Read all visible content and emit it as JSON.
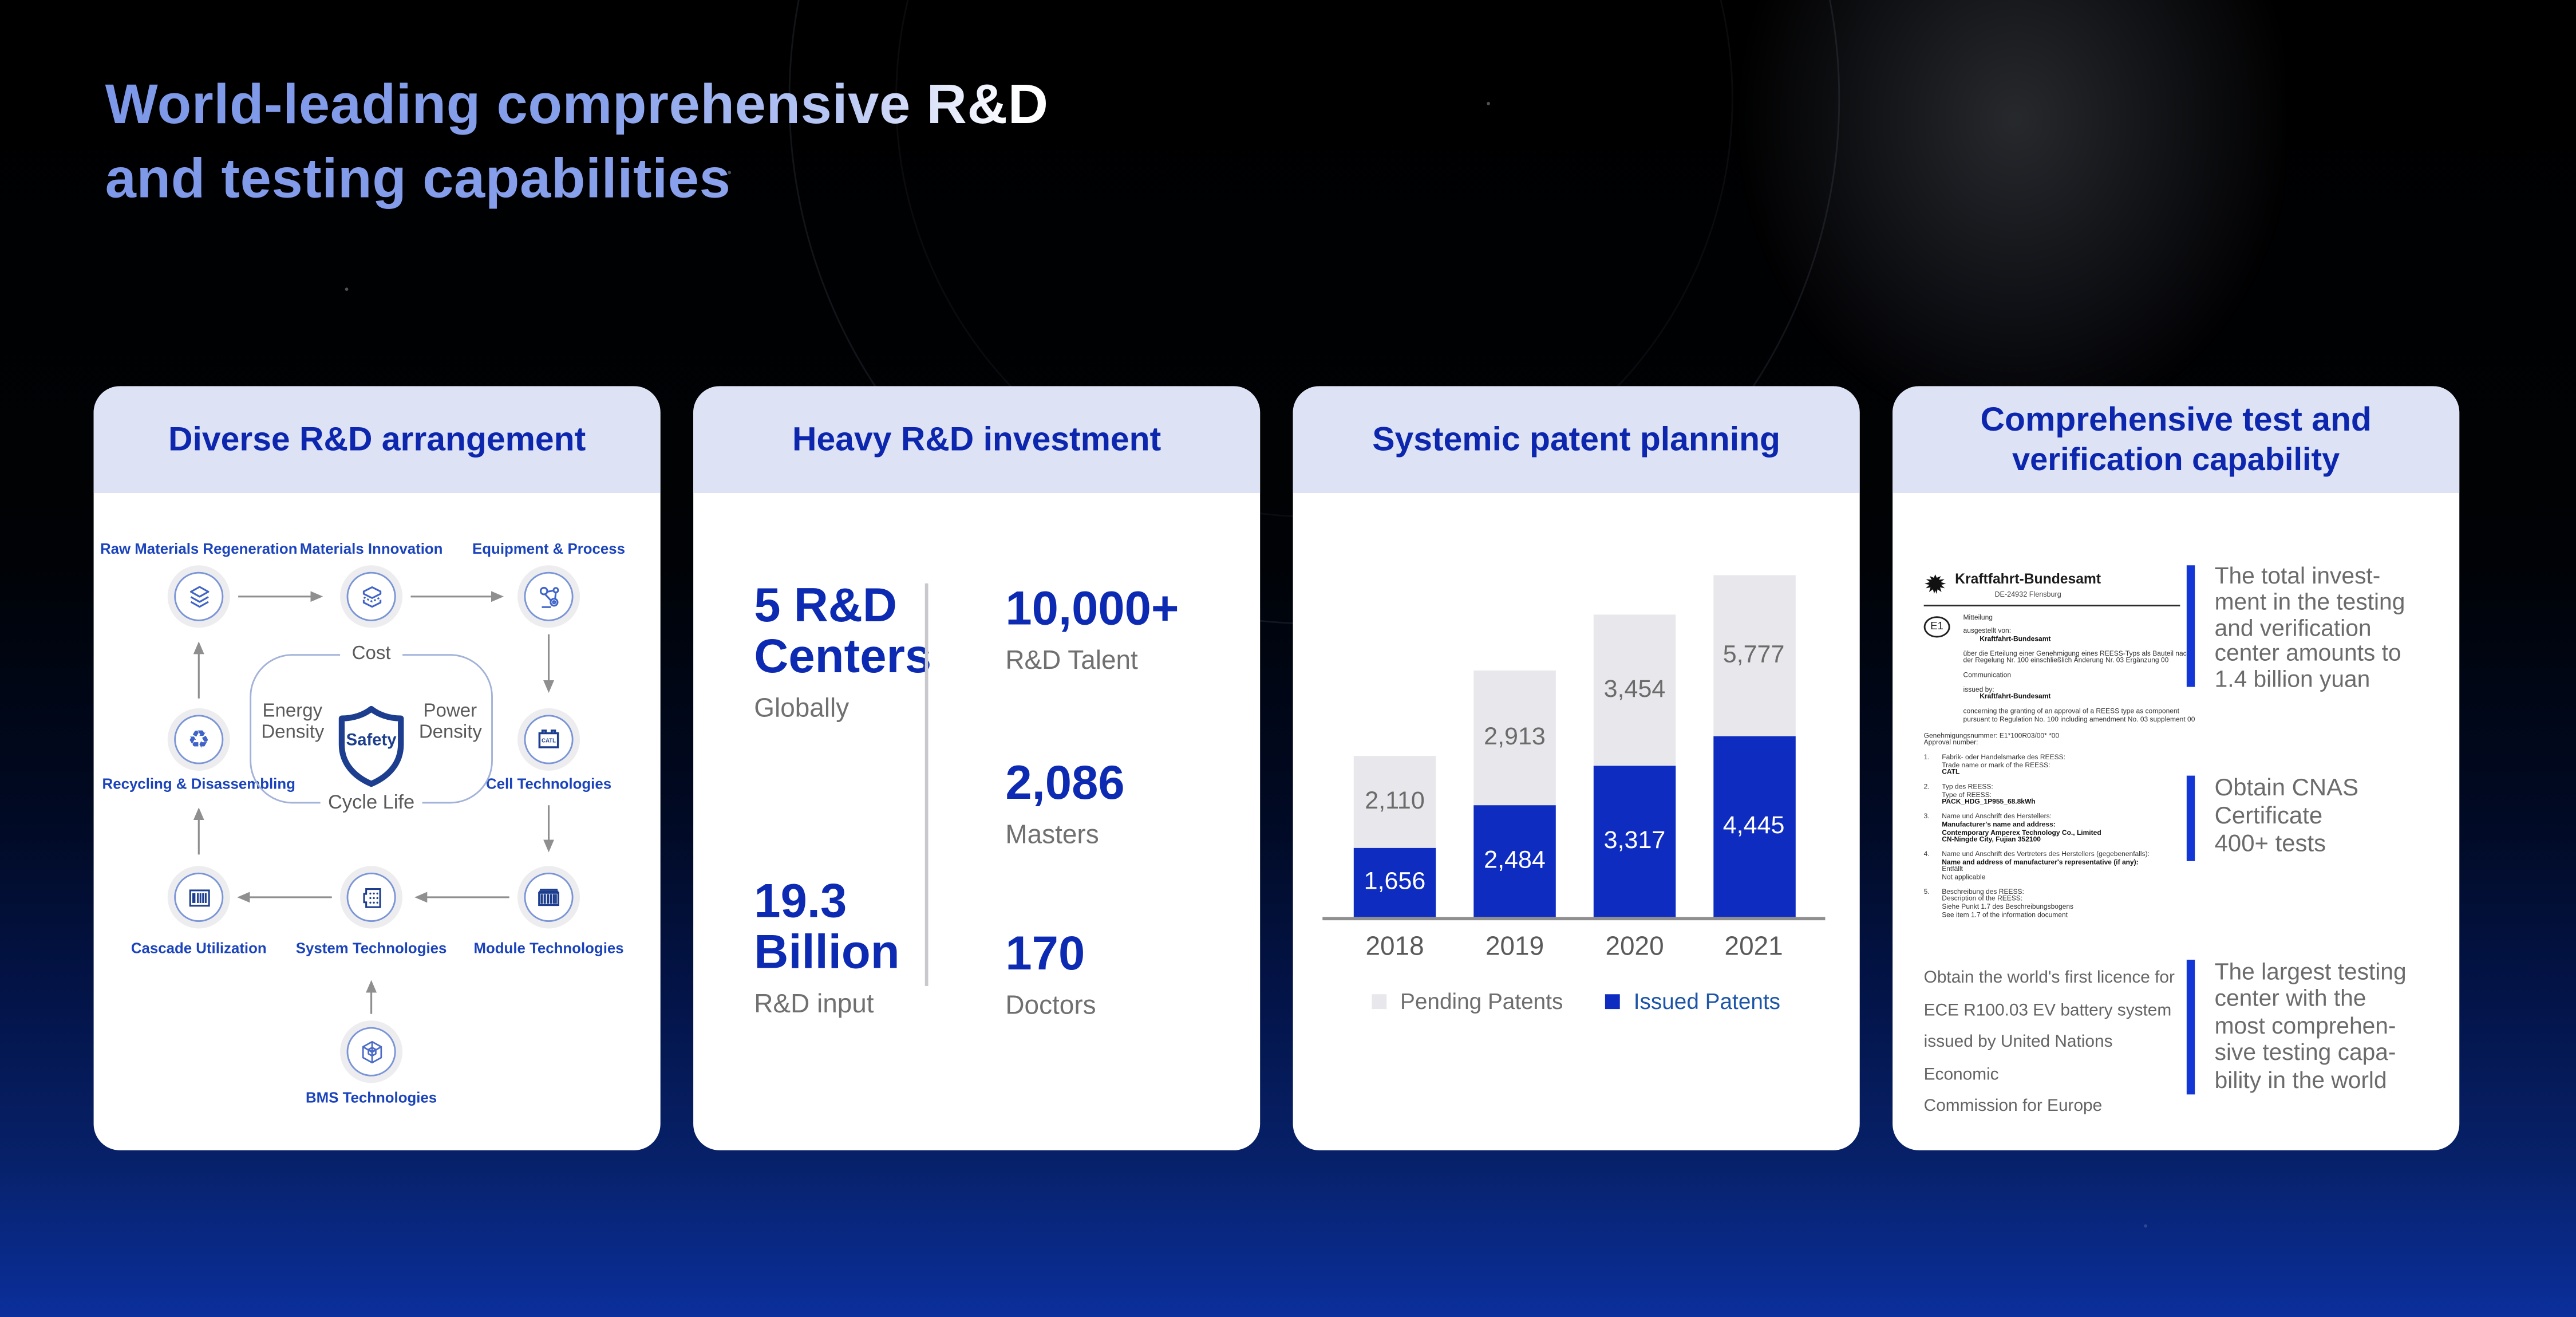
{
  "page": {
    "title_line1": "World-leading comprehensive R&D",
    "title_line2": "and testing capabilities"
  },
  "cards": {
    "arrangement": {
      "header": "Diverse R&D arrangement",
      "nodes": {
        "raw": "Raw Materials Regeneration",
        "materials": "Materials Innovation",
        "equipment": "Equipment & Process",
        "recycling": "Recycling & Disassembling",
        "cell": "Cell Technologies",
        "cascade": "Cascade Utilization",
        "system": "System Technologies",
        "module": "Module Technologies",
        "bms": "BMS Technologies"
      },
      "loop": {
        "top": "Cost",
        "left_line1": "Energy",
        "left_line2": "Density",
        "right_line1": "Power",
        "right_line2": "Density",
        "bottom": "Cycle Life",
        "center": "Safety"
      },
      "battery_text": "CATL"
    },
    "investment": {
      "header": "Heavy R&D investment",
      "left_stats": [
        {
          "value_lines": [
            "5 R&D",
            "Centers"
          ],
          "label": "Globally"
        },
        {
          "value_lines": [
            "19.3",
            "Billion"
          ],
          "label": "R&D input"
        }
      ],
      "right_stats": [
        {
          "value_lines": [
            "10,000+"
          ],
          "label": "R&D Talent"
        },
        {
          "value_lines": [
            "2,086"
          ],
          "label": "Masters"
        },
        {
          "value_lines": [
            "170"
          ],
          "label": "Doctors"
        }
      ]
    },
    "patents": {
      "header": "Systemic patent planning",
      "chart_data": {
        "type": "bar",
        "stacked": true,
        "categories": [
          "2018",
          "2019",
          "2020",
          "2021"
        ],
        "series": [
          {
            "name": "Issued Patents",
            "values": [
              1656,
              2484,
              3317,
              4445
            ],
            "color": "#0f2cc0"
          },
          {
            "name": "Pending Patents",
            "values": [
              2110,
              2913,
              3454,
              5777
            ],
            "color": "#e8e8ec"
          }
        ],
        "title": "",
        "xlabel": "",
        "ylabel": "",
        "grid": false,
        "legend_position": "bottom",
        "value_labels": true
      }
    },
    "testing": {
      "header_line1": "Comprehensive test and",
      "header_line2": "verification capability",
      "certificate": {
        "authority": "Kraftfahrt-Bundesamt",
        "location": "DE-24932 Flensburg",
        "e_mark": "E1",
        "intro_lines": [
          {
            "t": "Mitteilung"
          },
          {
            "t": "ausgestellt von:",
            "g": true
          },
          {
            "t": "Kraftfahrt-Bundesamt",
            "b": true,
            "i": true
          },
          {
            "t": "über die Erteilung einer Genehmigung eines REESS-Typs als Bauteil nach",
            "g": true
          },
          {
            "t": "der Regelung Nr. 100 einschließlich Änderung Nr. 03 Ergänzung 00"
          },
          {
            "t": "Communication",
            "g": true
          },
          {
            "t": "issued by:",
            "g": true
          },
          {
            "t": "Kraftfahrt-Bundesamt",
            "b": true,
            "i": true
          },
          {
            "t": "concerning the granting of an approval of a REESS type as component",
            "g": true
          },
          {
            "t": "pursuant to Regulation No. 100 including amendment No. 03 supplement 00"
          }
        ],
        "approval_lines": [
          {
            "t": "Genehmigungsnummer: E1*100R03/00*        *00"
          },
          {
            "t": "Approval number:"
          }
        ],
        "items": [
          {
            "no": "1.",
            "lines": [
              {
                "t": "Fabrik- oder Handelsmarke des REESS:"
              },
              {
                "t": "Trade name or mark of the REESS:"
              },
              {
                "t": "CATL",
                "b": true
              }
            ]
          },
          {
            "no": "2.",
            "lines": [
              {
                "t": "Typ des REESS:"
              },
              {
                "t": "Type of REESS:"
              },
              {
                "t": "PACK_HDG_1P955_68.8kWh",
                "b": true
              }
            ]
          },
          {
            "no": "3.",
            "lines": [
              {
                "t": "Name und Anschrift des Herstellers:"
              },
              {
                "t": "Manufacturer's name and address:",
                "b": true
              },
              {
                "t": "Contemporary Amperex Technology Co., Limited",
                "b": true
              },
              {
                "t": "CN-Ningde City, Fujian 352100",
                "b": true
              }
            ]
          },
          {
            "no": "4.",
            "lines": [
              {
                "t": "Name und Anschrift des Vertreters des Herstellers (gegebenenfalls):"
              },
              {
                "t": "Name and address of manufacturer's representative (if any):",
                "b": true
              },
              {
                "t": "Entfällt"
              },
              {
                "t": "Not applicable"
              }
            ]
          },
          {
            "no": "5.",
            "lines": [
              {
                "t": "Beschreibung des REESS:"
              },
              {
                "t": "Description of the REESS:"
              },
              {
                "t": "Siehe Punkt 1.7 des Beschreibungsbogens"
              },
              {
                "t": "See item 1.7 of the information document"
              }
            ]
          }
        ]
      },
      "licence_lines": [
        "Obtain the world's first licence for",
        "ECE R100.03 EV battery system",
        "issued by United Nations Economic",
        "Commission for Europe"
      ],
      "highlights": [
        {
          "lines": [
            "The total invest-",
            "ment in the testing",
            "and verification",
            "center amounts to",
            "1.4 billion yuan"
          ]
        },
        {
          "lines": [
            "Obtain CNAS",
            "Certificate",
            "400+ tests"
          ]
        },
        {
          "lines": [
            "The largest testing",
            "center with the",
            "most comprehen-",
            "sive testing capa-",
            "bility in the world"
          ]
        }
      ]
    }
  },
  "colors": {
    "header_band": "#dde2f4",
    "header_text": "#0c26ae",
    "stat_blue": "#0d2bb2",
    "issued_blue": "#0f2cc0",
    "pending_gray": "#e8e8ec",
    "accent_bar_blue": "#1336d6",
    "diagram_label_blue": "#1b44bc",
    "shield_navy": "#1d3e8f"
  }
}
